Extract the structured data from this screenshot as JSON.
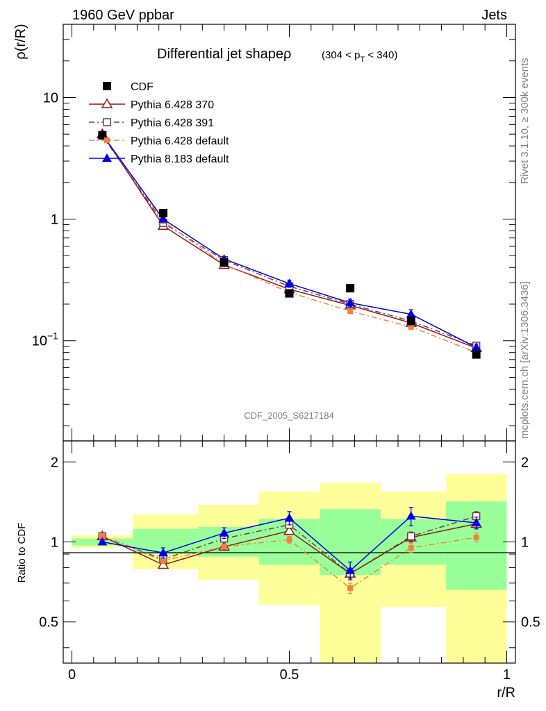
{
  "header": {
    "beam": "1960 GeV ppbar",
    "process": "Jets",
    "plot_title": "Differential jet shapeρ",
    "title_range": "(304 < p",
    "title_range_sub": "T",
    "title_range_end": " < 340)",
    "analysis_id": "CDF_2005_S6217184",
    "side_top": "Rivet 3.1.10, ≥ 300k events",
    "side_bottom": "mcplots.cern.ch [arXiv:1306.3436]"
  },
  "chart_data": [
    {
      "type": "line",
      "panel": "main",
      "title": "Differential jet shapeρ (304 < pT < 340)",
      "xlabel": "r/R",
      "ylabel": "ρ(r/R)",
      "yscale": "log",
      "xlim": [
        -0.02,
        1.02
      ],
      "ylim": [
        0.015,
        40
      ],
      "ytick_labels": [
        "10",
        "1",
        "10^-1"
      ],
      "ytick_values": [
        10,
        1,
        0.1
      ],
      "x": [
        0.07,
        0.21,
        0.35,
        0.5,
        0.64,
        0.78,
        0.93
      ],
      "series": [
        {
          "name": "CDF",
          "color": "#000000",
          "marker": "filled-square",
          "line": "none",
          "values": [
            4.9,
            1.12,
            0.44,
            0.245,
            0.27,
            0.145,
            0.077
          ]
        },
        {
          "name": "Pythia 6.428 370",
          "color": "#8b1a1a",
          "marker": "open-triangle",
          "line": "solid",
          "values": [
            5.0,
            0.88,
            0.42,
            0.265,
            0.195,
            0.14,
            0.087
          ],
          "errors": [
            0.1,
            0.02,
            0.01,
            0.01,
            0.01,
            0.008,
            0.005
          ]
        },
        {
          "name": "Pythia 6.428 391",
          "color": "#6b3a4a",
          "marker": "open-square",
          "line": "dashdot",
          "values": [
            4.85,
            0.93,
            0.46,
            0.28,
            0.2,
            0.145,
            0.091
          ],
          "errors": [
            0.1,
            0.02,
            0.01,
            0.01,
            0.01,
            0.008,
            0.005
          ]
        },
        {
          "name": "Pythia 6.428 default",
          "color": "#f4813b",
          "marker": "filled-small-square",
          "line": "dashdot",
          "values": [
            5.0,
            0.96,
            0.425,
            0.25,
            0.175,
            0.13,
            0.08
          ],
          "errors": [
            0.1,
            0.02,
            0.01,
            0.01,
            0.008,
            0.006,
            0.004
          ]
        },
        {
          "name": "Pythia 8.183 default",
          "color": "#0000e6",
          "marker": "filled-triangle",
          "line": "solid",
          "values": [
            4.95,
            1.0,
            0.47,
            0.295,
            0.205,
            0.165,
            0.088
          ],
          "errors": [
            0.15,
            0.03,
            0.02,
            0.02,
            0.015,
            0.015,
            0.006
          ]
        }
      ]
    },
    {
      "type": "line",
      "panel": "ratio",
      "xlabel": "r/R",
      "ylabel": "Ratio to CDF",
      "yscale": "log",
      "xlim": [
        -0.02,
        1.02
      ],
      "ylim": [
        0.35,
        2.4
      ],
      "ytick_labels": [
        "0.5",
        "1",
        "2"
      ],
      "ytick_values": [
        0.5,
        1,
        2
      ],
      "xtick_labels": [
        "0",
        "0.5",
        "1"
      ],
      "xtick_values": [
        0,
        0.5,
        1
      ],
      "bins": [
        [
          0,
          0.14
        ],
        [
          0.14,
          0.29
        ],
        [
          0.29,
          0.43
        ],
        [
          0.43,
          0.57
        ],
        [
          0.57,
          0.71
        ],
        [
          0.71,
          0.86
        ],
        [
          0.86,
          1.0
        ]
      ],
      "band_stat": [
        [
          0.97,
          1.03
        ],
        [
          0.9,
          1.12
        ],
        [
          0.88,
          1.14
        ],
        [
          0.82,
          1.22
        ],
        [
          0.75,
          1.33
        ],
        [
          0.82,
          1.22
        ],
        [
          0.66,
          1.42
        ]
      ],
      "band_total": [
        [
          0.95,
          1.06
        ],
        [
          0.79,
          1.27
        ],
        [
          0.72,
          1.38
        ],
        [
          0.58,
          1.55
        ],
        [
          0.3,
          1.67
        ],
        [
          0.57,
          1.55
        ],
        [
          0.3,
          1.8
        ]
      ],
      "x": [
        0.07,
        0.21,
        0.35,
        0.5,
        0.64,
        0.78,
        0.93
      ],
      "series": [
        {
          "name": "Pythia 6.428 370",
          "color": "#8b1a1a",
          "marker": "open-triangle",
          "line": "solid",
          "values": [
            1.05,
            0.82,
            0.96,
            1.1,
            0.76,
            1.04,
            1.17
          ],
          "errors": [
            0.02,
            0.02,
            0.02,
            0.03,
            0.03,
            0.04,
            0.05
          ]
        },
        {
          "name": "Pythia 6.428 391",
          "color": "#6b3a4a",
          "marker": "open-square",
          "line": "dashdot",
          "values": [
            1.05,
            0.86,
            1.03,
            1.16,
            0.76,
            1.05,
            1.25
          ],
          "errors": [
            0.02,
            0.02,
            0.02,
            0.03,
            0.03,
            0.04,
            0.05
          ]
        },
        {
          "name": "Pythia 6.428 default",
          "color": "#f4813b",
          "marker": "filled-small-square",
          "line": "dashdot",
          "values": [
            1.05,
            0.85,
            0.96,
            1.02,
            0.67,
            0.95,
            1.04
          ],
          "errors": [
            0.02,
            0.02,
            0.02,
            0.03,
            0.03,
            0.04,
            0.04
          ]
        },
        {
          "name": "Pythia 8.183 default",
          "color": "#0000e6",
          "marker": "filled-triangle",
          "line": "solid",
          "values": [
            1.0,
            0.91,
            1.08,
            1.23,
            0.78,
            1.25,
            1.18
          ],
          "errors": [
            0.02,
            0.04,
            0.05,
            0.07,
            0.06,
            0.1,
            0.06
          ]
        }
      ]
    }
  ]
}
